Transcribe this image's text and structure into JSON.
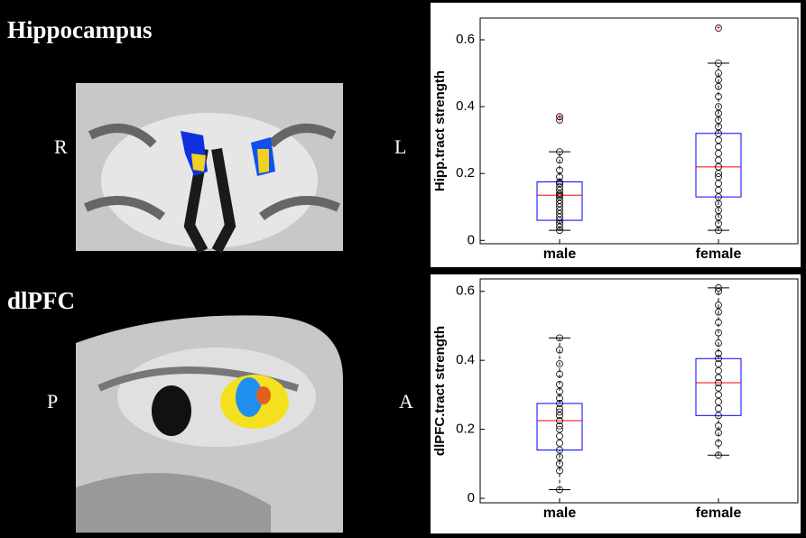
{
  "labels": {
    "top_title": "Hippocampus",
    "top_left": "R",
    "top_right": "L",
    "bottom_title": "dlPFC",
    "bottom_left": "P",
    "bottom_right": "A"
  },
  "chart_data": [
    {
      "type": "box",
      "ylabel": "Hipp.tract strength",
      "categories": [
        "male",
        "female"
      ],
      "ylim": [
        -0.01,
        0.665
      ],
      "yticks": [
        0,
        0.2,
        0.4,
        0.6
      ],
      "box_color": "#0000ff",
      "median_color": "#ff0000",
      "point_color": "#000000",
      "flier_color": "#ff0000",
      "boxes": [
        {
          "whislo": 0.03,
          "q1": 0.06,
          "med": 0.135,
          "q3": 0.175,
          "whishi": 0.265,
          "fliers": [
            0.36,
            0.37
          ],
          "points": [
            0.03,
            0.04,
            0.05,
            0.06,
            0.07,
            0.08,
            0.09,
            0.1,
            0.11,
            0.12,
            0.13,
            0.135,
            0.14,
            0.15,
            0.16,
            0.17,
            0.175,
            0.19,
            0.21,
            0.24,
            0.265
          ]
        },
        {
          "whislo": 0.03,
          "q1": 0.13,
          "med": 0.22,
          "q3": 0.32,
          "whishi": 0.53,
          "fliers": [
            0.635
          ],
          "points": [
            0.03,
            0.05,
            0.07,
            0.09,
            0.11,
            0.13,
            0.15,
            0.17,
            0.19,
            0.2,
            0.22,
            0.24,
            0.26,
            0.28,
            0.3,
            0.32,
            0.34,
            0.36,
            0.38,
            0.4,
            0.43,
            0.46,
            0.48,
            0.5,
            0.53
          ]
        }
      ]
    },
    {
      "type": "box",
      "ylabel": "dlPFC.tract strength",
      "categories": [
        "male",
        "female"
      ],
      "ylim": [
        -0.013,
        0.636
      ],
      "yticks": [
        0,
        0.2,
        0.4,
        0.6
      ],
      "box_color": "#0000ff",
      "median_color": "#ff0000",
      "point_color": "#000000",
      "flier_color": "#ff0000",
      "boxes": [
        {
          "whislo": 0.025,
          "q1": 0.14,
          "med": 0.225,
          "q3": 0.275,
          "whishi": 0.465,
          "fliers": [],
          "points": [
            0.025,
            0.08,
            0.1,
            0.12,
            0.14,
            0.16,
            0.18,
            0.2,
            0.21,
            0.225,
            0.24,
            0.25,
            0.26,
            0.275,
            0.29,
            0.31,
            0.33,
            0.36,
            0.39,
            0.43,
            0.465
          ]
        },
        {
          "whislo": 0.125,
          "q1": 0.24,
          "med": 0.335,
          "q3": 0.405,
          "whishi": 0.61,
          "fliers": [],
          "points": [
            0.125,
            0.16,
            0.19,
            0.21,
            0.24,
            0.26,
            0.28,
            0.3,
            0.32,
            0.335,
            0.35,
            0.37,
            0.39,
            0.405,
            0.42,
            0.45,
            0.48,
            0.51,
            0.54,
            0.56,
            0.6,
            0.61
          ]
        }
      ]
    }
  ]
}
